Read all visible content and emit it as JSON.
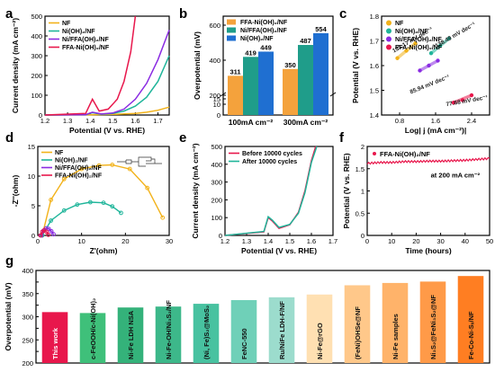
{
  "colors": {
    "nf": "#f2b21a",
    "ni": "#1fb59a",
    "niffa": "#8a2be2",
    "ffa": "#e8174c",
    "bar_ffa": "#f4a23c",
    "bar_niffa": "#1f9d8a",
    "bar_ni": "#1f6fd1",
    "axis": "#000000"
  },
  "panels": {
    "a": {
      "letter": "a"
    },
    "b": {
      "letter": "b"
    },
    "c": {
      "letter": "c"
    },
    "d": {
      "letter": "d"
    },
    "e": {
      "letter": "e"
    },
    "f": {
      "letter": "f"
    },
    "g": {
      "letter": "g"
    }
  },
  "chart_data": [
    {
      "id": "a",
      "type": "line",
      "xlabel": "Potential (V vs. RHE)",
      "ylabel": "Current density (mA cm⁻²)",
      "xlim": [
        1.2,
        1.75
      ],
      "ylim": [
        0,
        500
      ],
      "xticks": [
        1.2,
        1.3,
        1.4,
        1.5,
        1.6,
        1.7
      ],
      "yticks": [
        0,
        100,
        200,
        300,
        400,
        500
      ],
      "legend": "top-left",
      "series": [
        {
          "name": "NF",
          "color_key": "nf",
          "x": [
            1.2,
            1.4,
            1.5,
            1.6,
            1.65,
            1.7,
            1.75
          ],
          "y": [
            0,
            1,
            3,
            8,
            14,
            24,
            40
          ]
        },
        {
          "name": "Ni(OH)₂/NF",
          "color_key": "ni",
          "x": [
            1.2,
            1.38,
            1.41,
            1.45,
            1.5,
            1.55,
            1.6,
            1.65,
            1.7,
            1.75
          ],
          "y": [
            0,
            2,
            12,
            4,
            8,
            20,
            45,
            90,
            170,
            300
          ]
        },
        {
          "name": "Ni/FFA(OH)₂/NF",
          "color_key": "niffa",
          "x": [
            1.2,
            1.38,
            1.41,
            1.45,
            1.5,
            1.55,
            1.6,
            1.65,
            1.7,
            1.75
          ],
          "y": [
            0,
            2,
            14,
            5,
            10,
            30,
            80,
            160,
            280,
            430
          ]
        },
        {
          "name": "FFA-Ni(OH)₂/NF",
          "color_key": "ffa",
          "x": [
            1.2,
            1.38,
            1.41,
            1.44,
            1.48,
            1.52,
            1.55,
            1.58,
            1.6
          ],
          "y": [
            0,
            8,
            80,
            20,
            30,
            80,
            170,
            320,
            500
          ]
        }
      ]
    },
    {
      "id": "b",
      "type": "bar",
      "ylabel": "Overpotential (mV)",
      "categories": [
        "100mA cm⁻²",
        "300mA cm⁻²"
      ],
      "ylim": [
        0,
        600
      ],
      "yticks": [
        0,
        10,
        15,
        200,
        400,
        600
      ],
      "legend": "top-left",
      "series": [
        {
          "name": "FFA-Ni(OH)₂/NF",
          "color_key": "bar_ffa",
          "values": [
            311,
            350
          ],
          "labels": [
            "311",
            "350"
          ]
        },
        {
          "name": "Ni/FFA(OH)₂/NF",
          "color_key": "bar_niffa",
          "values": [
            419,
            487
          ],
          "labels": [
            "419",
            "487"
          ]
        },
        {
          "name": "Ni(OH)₂/NF",
          "color_key": "bar_ni",
          "values": [
            449,
            554
          ],
          "labels": [
            "449",
            "554"
          ]
        }
      ]
    },
    {
      "id": "c",
      "type": "scatter",
      "xlabel": "Log| j (mA cm⁻²)|",
      "ylabel": "Potential (V vs. RHE)",
      "xlim": [
        0.4,
        2.8
      ],
      "ylim": [
        1.4,
        1.8
      ],
      "xticks": [
        0.8,
        1.6,
        2.4
      ],
      "yticks": [
        1.4,
        1.5,
        1.6,
        1.7,
        1.8
      ],
      "legend": "top-left",
      "series": [
        {
          "name": "NF",
          "color_key": "nf",
          "x": [
            0.75,
            0.95,
            1.15
          ],
          "y": [
            1.63,
            1.66,
            1.69
          ],
          "annotation": "131.17 mV dec⁻¹"
        },
        {
          "name": "Ni(OH)₂/NF",
          "color_key": "ni",
          "x": [
            1.5,
            1.7,
            1.9
          ],
          "y": [
            1.65,
            1.68,
            1.71
          ],
          "annotation": "138.49 mV dec⁻¹"
        },
        {
          "name": "Ni/FFA(OH)₂/NF",
          "color_key": "niffa",
          "x": [
            1.25,
            1.45,
            1.65
          ],
          "y": [
            1.58,
            1.6,
            1.62
          ],
          "annotation": "85.94 mV dec⁻¹"
        },
        {
          "name": "FFA-Ni(OH)₂/NF",
          "color_key": "ffa",
          "x": [
            2.0,
            2.2,
            2.4
          ],
          "y": [
            1.45,
            1.46,
            1.48
          ],
          "annotation": "77.68 mV dec⁻¹"
        }
      ]
    },
    {
      "id": "d",
      "type": "scatter",
      "xlabel": "Z'(ohm)",
      "ylabel": "-Z''(ohm)",
      "xlim": [
        0,
        30
      ],
      "ylim": [
        0,
        15
      ],
      "xticks": [
        0,
        10,
        20,
        30
      ],
      "yticks": [
        0,
        5,
        10,
        15
      ],
      "legend": "top-left",
      "series": [
        {
          "name": "NF",
          "color_key": "nf",
          "x": [
            1,
            3,
            6,
            10,
            14,
            17,
            21,
            25,
            28.5
          ],
          "y": [
            0,
            6,
            9.5,
            11.2,
            11.8,
            11.9,
            11.2,
            8,
            3
          ]
        },
        {
          "name": "Ni(OH)₂/NF",
          "color_key": "ni",
          "x": [
            1,
            3,
            6,
            9,
            12,
            15,
            17,
            19
          ],
          "y": [
            0,
            2.5,
            4.2,
            5.2,
            5.6,
            5.5,
            4.9,
            3.8
          ]
        },
        {
          "name": "Ni/FFA(OH)₂/NF",
          "color_key": "niffa",
          "x": [
            0.8,
            1.3,
            1.9,
            2.5,
            3.1,
            3.6
          ],
          "y": [
            0,
            0.8,
            1.2,
            1.1,
            0.7,
            0.2
          ]
        },
        {
          "name": "FFA-Ni(OH)₂/NF",
          "color_key": "ffa",
          "x": [
            0.6,
            1.0,
            1.5,
            2.0,
            2.4
          ],
          "y": [
            0,
            0.6,
            0.9,
            0.6,
            0.1
          ]
        }
      ]
    },
    {
      "id": "e",
      "type": "line",
      "xlabel": "Potential (V vs. RHE)",
      "ylabel": "Current density (mA cm⁻²)",
      "xlim": [
        1.2,
        1.7
      ],
      "ylim": [
        0,
        500
      ],
      "xticks": [
        1.2,
        1.3,
        1.4,
        1.5,
        1.6,
        1.7
      ],
      "yticks": [
        0,
        100,
        200,
        300,
        400,
        500
      ],
      "legend": "top-left",
      "series": [
        {
          "name": "Before 10000 cycles",
          "color_key": "ffa",
          "x": [
            1.2,
            1.38,
            1.4,
            1.42,
            1.45,
            1.5,
            1.54,
            1.57,
            1.6,
            1.62
          ],
          "y": [
            0,
            20,
            100,
            80,
            40,
            60,
            130,
            250,
            420,
            500
          ]
        },
        {
          "name": "After 10000 cycles",
          "color_key": "ni",
          "x": [
            1.2,
            1.38,
            1.4,
            1.42,
            1.45,
            1.5,
            1.54,
            1.57,
            1.6,
            1.625
          ],
          "y": [
            0,
            22,
            105,
            85,
            45,
            62,
            125,
            240,
            410,
            500
          ]
        }
      ]
    },
    {
      "id": "f",
      "type": "line",
      "xlabel": "Time (hours)",
      "ylabel": "Potential (V vs. RHE)",
      "xlim": [
        0,
        50
      ],
      "ylim": [
        0,
        2
      ],
      "xticks": [
        0,
        10,
        20,
        30,
        40,
        50
      ],
      "yticks": [
        0.0,
        0.5,
        1.0,
        1.5,
        2.0
      ],
      "legend": "top-left",
      "annotation": "at 200 mA cm⁻²",
      "series": [
        {
          "name": "FFA-Ni(OH)₂/NF",
          "color_key": "ffa",
          "x": [
            0,
            5,
            10,
            15,
            20,
            25,
            30,
            35,
            40,
            45,
            50
          ],
          "y": [
            1.62,
            1.64,
            1.64,
            1.66,
            1.66,
            1.67,
            1.67,
            1.68,
            1.69,
            1.71,
            1.73
          ]
        }
      ]
    },
    {
      "id": "g",
      "type": "bar",
      "ylabel": "Overpotential (mV)",
      "ylim": [
        200,
        400
      ],
      "yticks": [
        200,
        225,
        250,
        275,
        300,
        325,
        350,
        375,
        400
      ],
      "categories": [
        "This work",
        "c-FeOOH/c-Ni(OH)₂",
        "Ni-Fe LDH NSA",
        "Ni-Fe-OH/Ni₃S₂/NF",
        "(Ni, Fe)S₂@MoS₂",
        "FeNC-550",
        "Ru/NiFe LDH-F/NF",
        "Ni-Fe@rGO",
        "(FeNi)OHSe@NF",
        "Ni-Fe samples",
        "Ni₃S₂@FeNi₃S₂@NF",
        "Fe-Co-Ni-Sₓ/NF"
      ],
      "values": [
        310,
        308,
        320,
        322,
        328,
        336,
        342,
        348,
        368,
        373,
        376,
        388
      ],
      "colors": [
        "#e8174c",
        "#3fc07a",
        "#34b27a",
        "#3db88a",
        "#48c2a0",
        "#6fd0b8",
        "#9cdccd",
        "#ffe0b2",
        "#ffc88a",
        "#ffb36a",
        "#ff9a48",
        "#ff7e22"
      ]
    }
  ]
}
